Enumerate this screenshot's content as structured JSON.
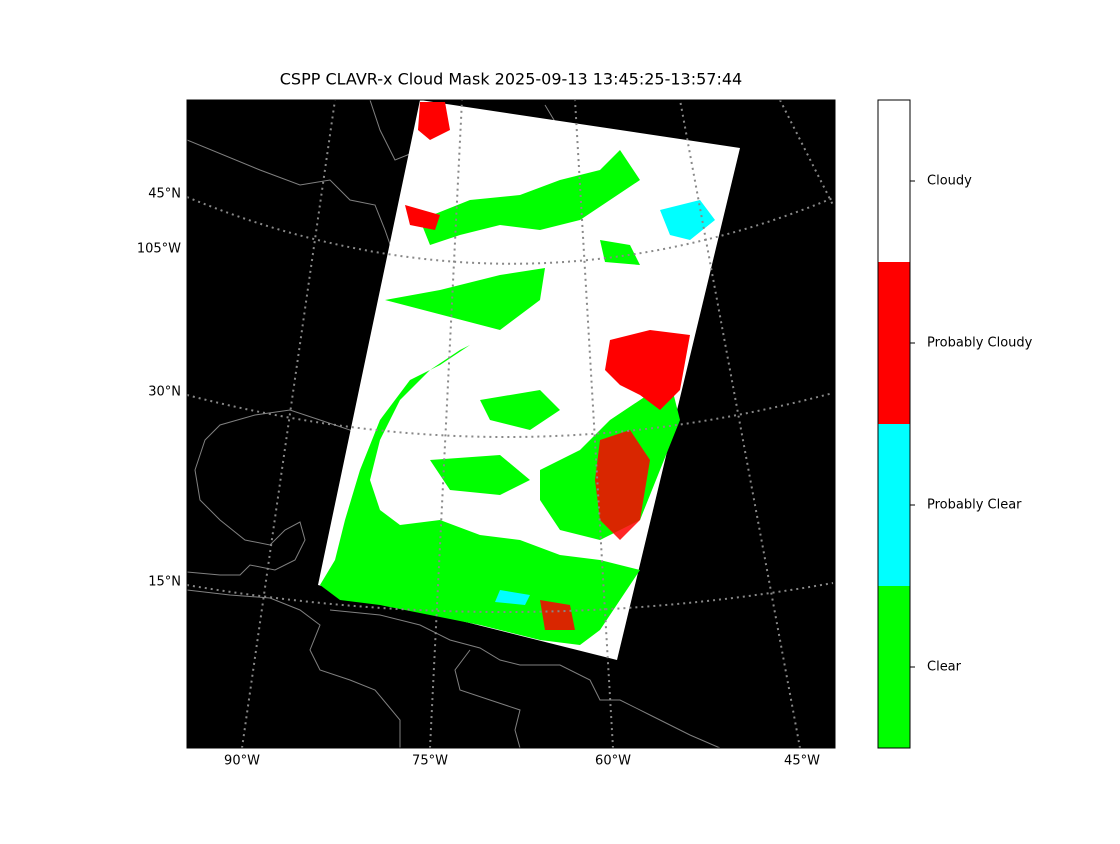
{
  "title": "CSPP CLAVR-x Cloud Mask 2025-09-13 13:45:25-13:57:44",
  "lat_labels": [
    "45°N",
    "105°W",
    "30°N",
    "15°N"
  ],
  "lon_labels": [
    "90°W",
    "75°W",
    "60°W",
    "45°W"
  ],
  "colorbar": {
    "classes": [
      {
        "label": "Clear",
        "color": "#00ff00"
      },
      {
        "label": "Probably Clear",
        "color": "#00ffff"
      },
      {
        "label": "Probably Cloudy",
        "color": "#ff0000"
      },
      {
        "label": "Cloudy",
        "color": "#ffffff"
      }
    ]
  }
}
